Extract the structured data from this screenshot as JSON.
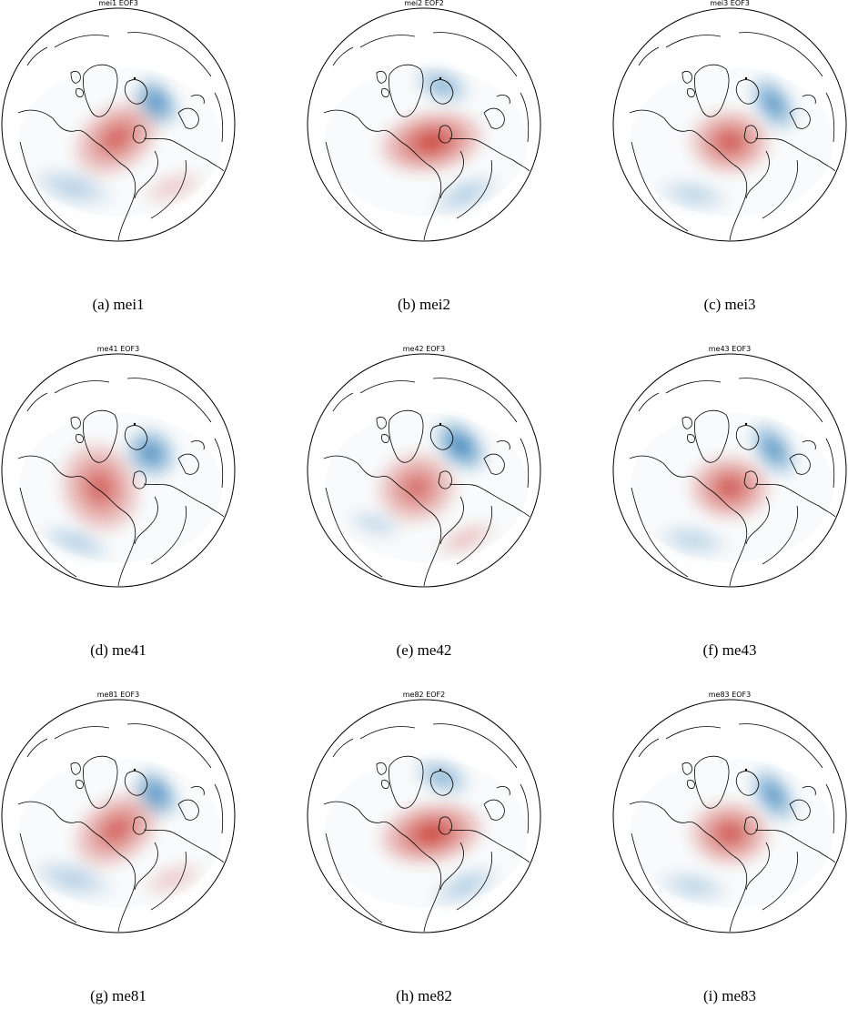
{
  "colormap": {
    "positive": "#c8362e",
    "negative": "#2f7bb6",
    "background": "#ffffff",
    "coast": "#000000"
  },
  "panels": [
    {
      "id": "a",
      "map_title": "mei1 EOF3",
      "caption": "(a) mei1",
      "pattern": "A"
    },
    {
      "id": "b",
      "map_title": "mei2 EOF2",
      "caption": "(b) mei2",
      "pattern": "B"
    },
    {
      "id": "c",
      "map_title": "mei3 EOF3",
      "caption": "(c) mei3",
      "pattern": "C"
    },
    {
      "id": "d",
      "map_title": "me41 EOF3",
      "caption": "(d) me41",
      "pattern": "D"
    },
    {
      "id": "e",
      "map_title": "me42 EOF3",
      "caption": "(e) me42",
      "pattern": "E"
    },
    {
      "id": "f",
      "map_title": "me43 EOF3",
      "caption": "(f) me43",
      "pattern": "C"
    },
    {
      "id": "g",
      "map_title": "me81 EOF3",
      "caption": "(g) me81",
      "pattern": "A"
    },
    {
      "id": "h",
      "map_title": "me82 EOF2",
      "caption": "(h) me82",
      "pattern": "B"
    },
    {
      "id": "i",
      "map_title": "me83 EOF3",
      "caption": "(i) me83",
      "pattern": "C"
    }
  ]
}
